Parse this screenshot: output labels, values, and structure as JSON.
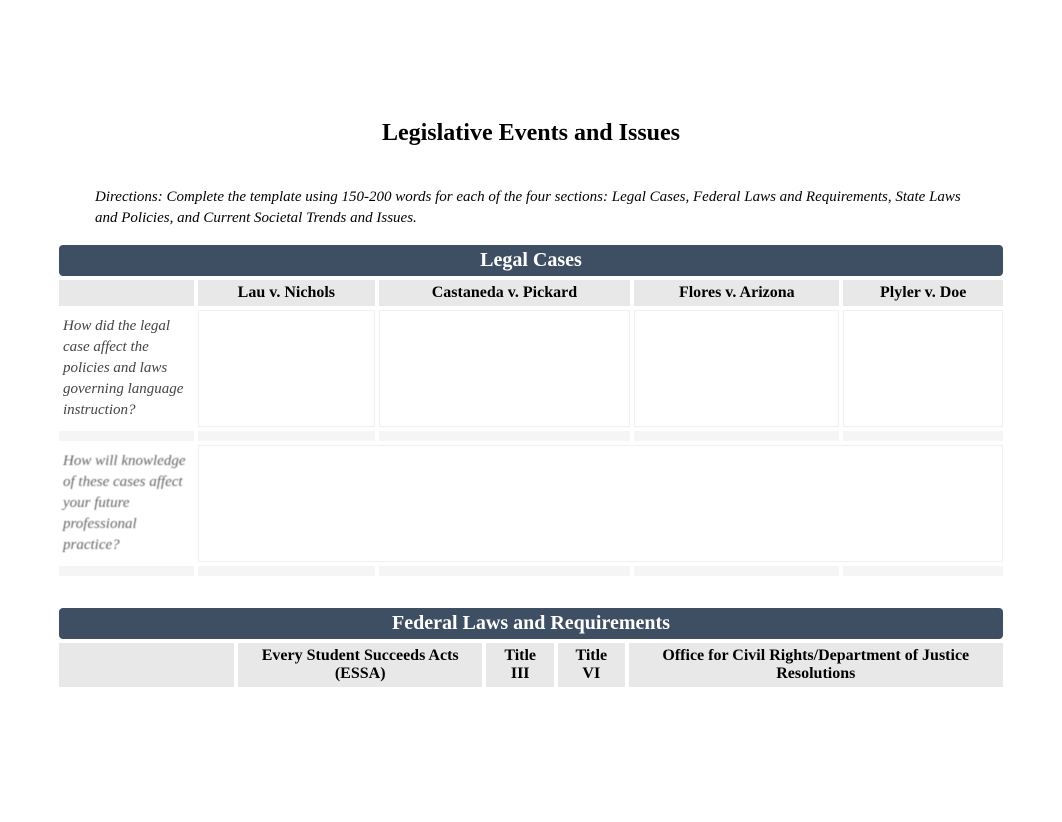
{
  "title": "Legislative Events and Issues",
  "directions": "Directions: Complete the template using 150-200 words for each of the four sections: Legal Cases, Federal Laws and Requirements, State Laws and Policies, and Current Societal Trends and Issues.",
  "section1": {
    "header": "Legal Cases",
    "columns": [
      "Lau v. Nichols",
      "Castaneda v. Pickard",
      "Flores v. Arizona",
      "Plyler v. Doe"
    ],
    "rows": [
      "How did the legal case affect the policies and laws governing language instruction?",
      "How will knowledge of these cases affect your future professional practice?"
    ]
  },
  "section2": {
    "header": "Federal Laws and Requirements",
    "columns": [
      "Every Student Succeeds Acts (ESSA)",
      "Title III",
      "Title VI",
      "Office for Civil Rights/Department of Justice Resolutions"
    ]
  },
  "colors": {
    "header_bg": "#3e4f63",
    "header_text": "#ffffff",
    "col_header_bg": "#e8e8e8",
    "page_bg": "#ffffff"
  }
}
